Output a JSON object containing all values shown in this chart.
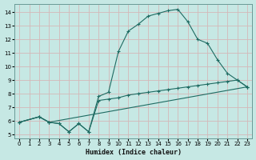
{
  "xlabel": "Humidex (Indice chaleur)",
  "xlim": [
    -0.5,
    23.5
  ],
  "ylim": [
    4.7,
    14.6
  ],
  "xticks": [
    0,
    1,
    2,
    3,
    4,
    5,
    6,
    7,
    8,
    9,
    10,
    11,
    12,
    13,
    14,
    15,
    16,
    17,
    18,
    19,
    20,
    21,
    22,
    23
  ],
  "yticks": [
    5,
    6,
    7,
    8,
    9,
    10,
    11,
    12,
    13,
    14
  ],
  "bg_color": "#c6e8e4",
  "line_color": "#1e6b62",
  "grid_color": "#d4b8b8",
  "curve1_x": [
    0,
    2,
    3,
    4,
    5,
    6,
    7,
    8,
    9,
    10,
    11,
    12,
    13,
    14,
    15,
    16,
    17,
    18,
    19,
    20,
    21,
    22,
    23
  ],
  "curve1_y": [
    5.9,
    6.3,
    5.9,
    5.8,
    5.2,
    5.8,
    5.2,
    7.8,
    8.1,
    11.1,
    12.6,
    13.1,
    13.7,
    13.9,
    14.1,
    14.2,
    13.3,
    12.0,
    11.7,
    10.5,
    9.5,
    9.0,
    8.5
  ],
  "curve2_x": [
    0,
    2,
    3,
    4,
    5,
    6,
    7,
    8,
    9,
    10,
    11,
    12,
    13,
    14,
    15,
    16,
    17,
    18,
    19,
    20,
    21,
    22,
    23
  ],
  "curve2_y": [
    5.9,
    6.3,
    5.9,
    5.8,
    5.2,
    5.8,
    5.2,
    7.5,
    7.6,
    7.7,
    7.9,
    8.0,
    8.1,
    8.2,
    8.3,
    8.4,
    8.5,
    8.6,
    8.7,
    8.8,
    8.9,
    9.0,
    8.5
  ],
  "curve3_x": [
    0,
    2,
    3,
    23
  ],
  "curve3_y": [
    5.9,
    6.3,
    5.9,
    8.5
  ]
}
